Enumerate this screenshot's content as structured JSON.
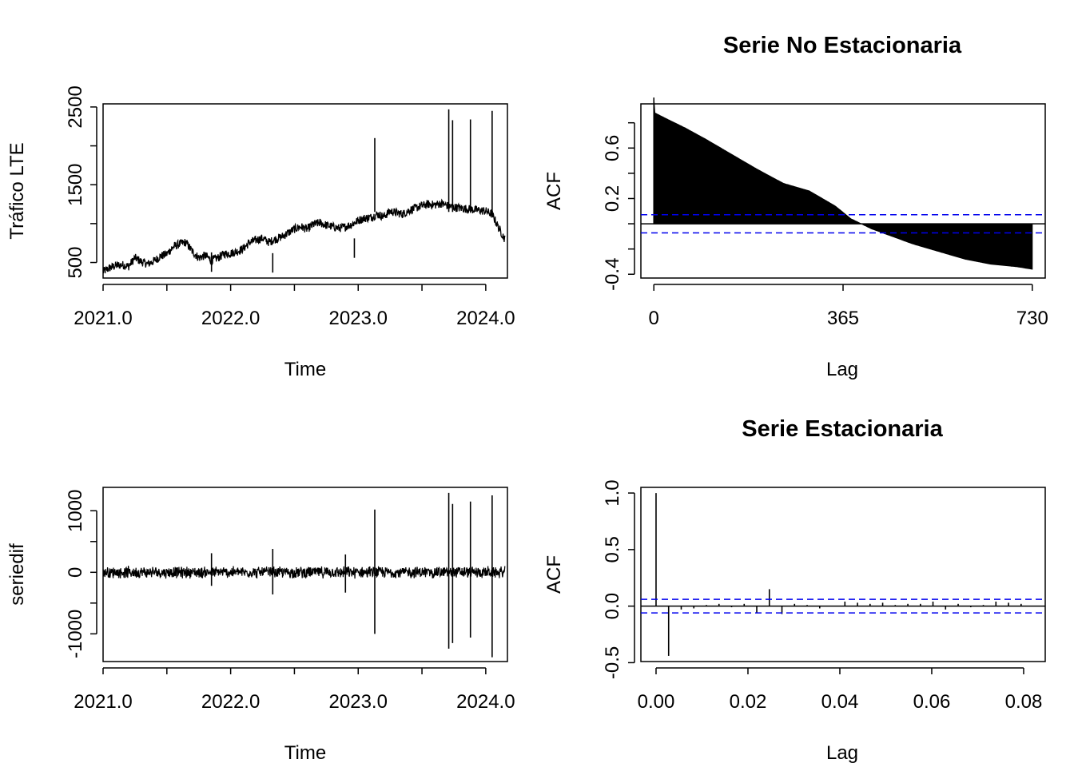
{
  "chart_data": [
    {
      "type": "line",
      "title": "",
      "xlabel": "Time",
      "ylabel": "Tráfico LTE",
      "xlim": [
        2021.0,
        2024.17
      ],
      "ylim": [
        300,
        2540
      ],
      "x_ticks": [
        2021.0,
        2021.5,
        2022.0,
        2022.5,
        2023.0,
        2023.5,
        2024.0
      ],
      "x_tick_labels": [
        "2021.0",
        "",
        "2022.0",
        "",
        "2023.0",
        "",
        "2024.0"
      ],
      "y_ticks": [
        500,
        1000,
        1500,
        2000,
        2500
      ],
      "y_tick_labels": [
        "500",
        "",
        "1500",
        "",
        "2500"
      ],
      "series": [
        {
          "x": [
            2021.0,
            2021.05,
            2021.1,
            2021.15,
            2021.2,
            2021.25,
            2021.3,
            2021.35,
            2021.4,
            2021.45,
            2021.5,
            2021.55,
            2021.6,
            2021.65,
            2021.7,
            2021.75,
            2021.8,
            2021.85,
            2021.9,
            2021.95,
            2022.0,
            2022.05,
            2022.1,
            2022.15,
            2022.2,
            2022.25,
            2022.3,
            2022.35,
            2022.4,
            2022.45,
            2022.5,
            2022.55,
            2022.6,
            2022.65,
            2022.7,
            2022.75,
            2022.8,
            2022.85,
            2022.9,
            2022.95,
            2023.0,
            2023.05,
            2023.1,
            2023.15,
            2023.2,
            2023.25,
            2023.3,
            2023.35,
            2023.4,
            2023.45,
            2023.5,
            2023.55,
            2023.6,
            2023.65,
            2023.7,
            2023.75,
            2023.8,
            2023.85,
            2023.9,
            2023.95,
            2024.0,
            2024.05,
            2024.1,
            2024.15
          ],
          "values": [
            380,
            430,
            460,
            470,
            450,
            560,
            510,
            480,
            520,
            580,
            610,
            700,
            740,
            760,
            640,
            560,
            590,
            530,
            560,
            610,
            620,
            640,
            680,
            760,
            790,
            810,
            760,
            800,
            830,
            880,
            930,
            960,
            930,
            990,
            1010,
            980,
            960,
            940,
            960,
            990,
            1040,
            1070,
            1080,
            1120,
            1090,
            1160,
            1140,
            1120,
            1170,
            1200,
            1230,
            1250,
            1240,
            1260,
            1230,
            1210,
            1200,
            1190,
            1180,
            1170,
            1160,
            1120,
            950,
            800
          ]
        }
      ],
      "spikes": [
        {
          "x": 2023.13,
          "value": 2100
        },
        {
          "x": 2023.71,
          "value": 2470
        },
        {
          "x": 2023.74,
          "value": 2330
        },
        {
          "x": 2023.88,
          "value": 2340
        },
        {
          "x": 2024.05,
          "value": 2450
        }
      ],
      "dips": [
        {
          "x": 2021.85,
          "value": 380
        },
        {
          "x": 2022.33,
          "value": 370
        },
        {
          "x": 2022.97,
          "value": 560
        }
      ]
    },
    {
      "type": "bar",
      "title": "Serie No Estacionaria",
      "xlabel": "Lag",
      "ylabel": "ACF",
      "xlim": [
        -25,
        755
      ],
      "ylim": [
        -0.43,
        0.95
      ],
      "x_ticks": [
        0,
        365,
        730
      ],
      "x_tick_labels": [
        "0",
        "365",
        "730"
      ],
      "y_ticks": [
        -0.4,
        -0.2,
        0.0,
        0.2,
        0.4,
        0.6,
        0.8
      ],
      "y_tick_labels": [
        "-0.4",
        "",
        "",
        "0.2",
        "",
        "0.6",
        ""
      ],
      "acf_profile": {
        "lags": [
          0,
          1,
          30,
          60,
          100,
          150,
          200,
          250,
          300,
          350,
          380,
          420,
          460,
          500,
          550,
          600,
          650,
          700,
          730
        ],
        "values": [
          1.0,
          0.88,
          0.82,
          0.76,
          0.67,
          0.55,
          0.43,
          0.32,
          0.26,
          0.14,
          0.04,
          -0.04,
          -0.1,
          -0.16,
          -0.22,
          -0.28,
          -0.32,
          -0.34,
          -0.36
        ]
      },
      "confidence_band": 0.072
    },
    {
      "type": "line",
      "title": "",
      "xlabel": "Time",
      "ylabel": "seriedif",
      "xlim": [
        2021.0,
        2024.17
      ],
      "ylim": [
        -1450,
        1380
      ],
      "x_ticks": [
        2021.0,
        2021.5,
        2022.0,
        2022.5,
        2023.0,
        2023.5,
        2024.0
      ],
      "x_tick_labels": [
        "2021.0",
        "",
        "2022.0",
        "",
        "2023.0",
        "",
        "2024.0"
      ],
      "y_ticks": [
        -1000,
        -500,
        0,
        500,
        1000
      ],
      "y_tick_labels": [
        "-1000",
        "",
        "0",
        "",
        "1000"
      ],
      "spikes": [
        {
          "x": 2021.85,
          "high": 310,
          "low": -220
        },
        {
          "x": 2022.33,
          "high": 380,
          "low": -360
        },
        {
          "x": 2022.9,
          "high": 290,
          "low": -330
        },
        {
          "x": 2023.13,
          "high": 1020,
          "low": -1000
        },
        {
          "x": 2023.71,
          "high": 1290,
          "low": -1240
        },
        {
          "x": 2023.74,
          "high": 1110,
          "low": -1150
        },
        {
          "x": 2023.88,
          "high": 1150,
          "low": -1060
        },
        {
          "x": 2024.05,
          "high": 1250,
          "low": -1380
        }
      ],
      "noise_amplitude": 90
    },
    {
      "type": "bar",
      "title": "Serie Estacionaria",
      "xlabel": "Lag",
      "ylabel": "ACF",
      "xlim": [
        -0.0033,
        0.0847
      ],
      "ylim": [
        -0.49,
        1.05
      ],
      "x_ticks": [
        0.0,
        0.02,
        0.04,
        0.06,
        0.08
      ],
      "x_tick_labels": [
        "0.00",
        "0.02",
        "0.04",
        "0.06",
        "0.08"
      ],
      "y_ticks": [
        -0.5,
        0.0,
        0.5,
        1.0
      ],
      "y_tick_labels": [
        "-0.5",
        "0.0",
        "0.5",
        "1.0"
      ],
      "lags": [
        0.0,
        0.00274,
        0.00548,
        0.00822,
        0.01096,
        0.0137,
        0.01644,
        0.01918,
        0.02192,
        0.02466,
        0.0274,
        0.03014,
        0.03288,
        0.03562,
        0.03836,
        0.0411,
        0.04384,
        0.04658,
        0.04932,
        0.05206,
        0.0548,
        0.05754,
        0.06027,
        0.06301,
        0.06575,
        0.06849,
        0.07123,
        0.07397,
        0.07671,
        0.07945
      ],
      "values": [
        1.0,
        -0.44,
        -0.03,
        -0.02,
        0.01,
        0.02,
        -0.01,
        0.02,
        -0.06,
        0.15,
        -0.07,
        0.02,
        0.01,
        -0.02,
        0.0,
        0.04,
        0.03,
        0.02,
        0.03,
        0.01,
        0.02,
        0.02,
        0.04,
        -0.03,
        0.02,
        -0.01,
        0.01,
        0.04,
        0.03,
        0.02
      ],
      "confidence_band": 0.06
    }
  ]
}
